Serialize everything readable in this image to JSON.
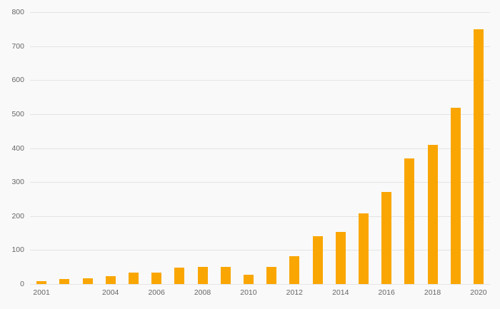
{
  "chart_data": {
    "type": "bar",
    "title": "",
    "xlabel": "",
    "ylabel": "",
    "categories": [
      "2001",
      "2002",
      "2003",
      "2004",
      "2005",
      "2006",
      "2007",
      "2008",
      "2009",
      "2010",
      "2011",
      "2012",
      "2013",
      "2014",
      "2015",
      "2016",
      "2017",
      "2018",
      "2019",
      "2020"
    ],
    "values": [
      8,
      15,
      17,
      23,
      33,
      33,
      48,
      50,
      50,
      27,
      50,
      82,
      140,
      153,
      207,
      270,
      370,
      410,
      518,
      750
    ],
    "x_tick_labels": [
      "2001",
      "2004",
      "2006",
      "2008",
      "2010",
      "2012",
      "2014",
      "2016",
      "2018",
      "2020"
    ],
    "y_ticks": [
      0,
      100,
      200,
      300,
      400,
      500,
      600,
      700,
      800
    ],
    "ylim": [
      0,
      800
    ],
    "grid": true,
    "legend": false,
    "colors": {
      "bar": "#F9A602",
      "background": "#f9f9f9",
      "gridline": "#e4e4e4",
      "tick_label": "#666666"
    }
  }
}
